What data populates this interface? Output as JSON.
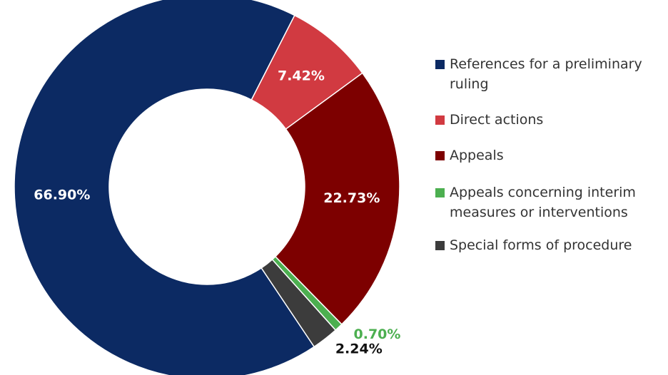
{
  "chart_data": {
    "type": "donut",
    "categories": [
      "References for a preliminary ruling",
      "Direct actions",
      "Appeals",
      "Appeals concerning interim measures or interventions",
      "Special forms of procedure"
    ],
    "values": [
      66.9,
      7.42,
      22.73,
      0.7,
      2.24
    ],
    "value_labels": [
      "66.90%",
      "7.42%",
      "22.73%",
      "0.70%",
      "2.24%"
    ],
    "colors": [
      "#0c2a63",
      "#d13a41",
      "#7d0000",
      "#4caf50",
      "#3c3c3c"
    ],
    "legend": "right"
  }
}
